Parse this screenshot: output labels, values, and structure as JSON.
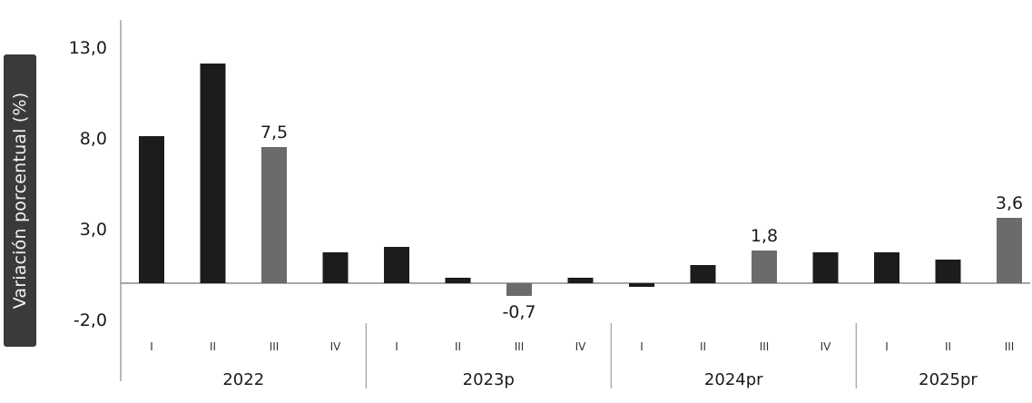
{
  "chart_data": {
    "type": "bar",
    "ylabel": "Variación porcentual (%)",
    "ylim": [
      -2.0,
      14.5
    ],
    "yticks": [
      "13,0",
      "8,0",
      "3,0",
      "-2,0"
    ],
    "ytick_values": [
      13.0,
      8.0,
      3.0,
      -2.0
    ],
    "grid": false,
    "colors": {
      "normal": "#1c1c1c",
      "highlight": "#6b6b6b",
      "axis": "#8a8a8a"
    },
    "groups": [
      {
        "name": "2022",
        "quarters": [
          "I",
          "II",
          "III",
          "IV"
        ]
      },
      {
        "name": "2023p",
        "quarters": [
          "I",
          "II",
          "III",
          "IV"
        ]
      },
      {
        "name": "2024pr",
        "quarters": [
          "I",
          "II",
          "III",
          "IV"
        ]
      },
      {
        "name": "2025pr",
        "quarters": [
          "I",
          "II",
          "III"
        ]
      }
    ],
    "values": [
      8.1,
      12.1,
      7.5,
      1.7,
      2.0,
      0.3,
      -0.7,
      0.3,
      -0.2,
      1.0,
      1.8,
      1.7,
      1.7,
      1.3,
      3.6
    ],
    "highlight": [
      false,
      false,
      true,
      false,
      false,
      false,
      true,
      false,
      false,
      false,
      true,
      false,
      false,
      false,
      true
    ],
    "data_labels": [
      "",
      "",
      "7,5",
      "",
      "",
      "",
      "-0,7",
      "",
      "",
      "",
      "1,8",
      "",
      "",
      "",
      "3,6"
    ]
  }
}
